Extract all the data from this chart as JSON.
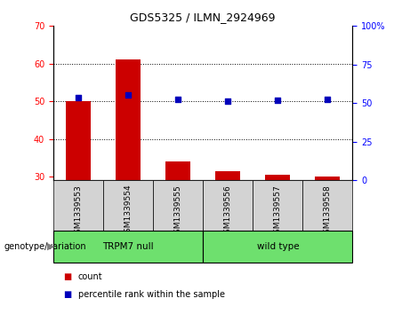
{
  "title": "GDS5325 / ILMN_2924969",
  "samples": [
    "GSM1339553",
    "GSM1339554",
    "GSM1339555",
    "GSM1339556",
    "GSM1339557",
    "GSM1339558"
  ],
  "counts": [
    50,
    61,
    34,
    31.5,
    30.5,
    30
  ],
  "percentile_ranks": [
    53.5,
    55.5,
    52.5,
    51.5,
    52,
    52.5
  ],
  "groups": [
    {
      "label": "TRPM7 null",
      "start": 0,
      "end": 3,
      "color": "#6EE06E"
    },
    {
      "label": "wild type",
      "start": 3,
      "end": 6,
      "color": "#6EE06E"
    }
  ],
  "group_label_prefix": "genotype/variation",
  "ylim_left": [
    29,
    70
  ],
  "ylim_right": [
    0,
    100
  ],
  "yticks_left": [
    30,
    40,
    50,
    60,
    70
  ],
  "yticks_right": [
    0,
    25,
    50,
    75,
    100
  ],
  "ytick_labels_right": [
    "0",
    "25",
    "50",
    "75",
    "100%"
  ],
  "bar_color": "#CC0000",
  "scatter_color": "#0000BB",
  "bar_width": 0.5,
  "grid_yticks": [
    40,
    50,
    60
  ],
  "background_color": "#ffffff",
  "plot_bg_color": "#ffffff",
  "sample_bg_color": "#d3d3d3",
  "legend_items": [
    "count",
    "percentile rank within the sample"
  ],
  "legend_colors": [
    "#CC0000",
    "#0000BB"
  ]
}
